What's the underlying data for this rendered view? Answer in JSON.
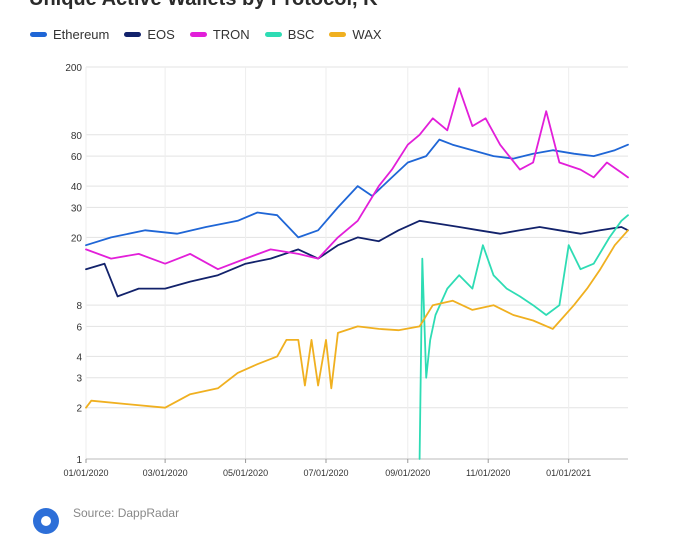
{
  "chart_data": {
    "type": "line",
    "title": "Unique Active Wallets by Protocol, K",
    "ylabel": "",
    "xlabel": "",
    "yscale": "log",
    "ylim": [
      1,
      200
    ],
    "y_ticks": [
      1,
      2,
      3,
      4,
      6,
      8,
      20,
      30,
      40,
      60,
      80,
      200
    ],
    "x_range": [
      "2020-01-01",
      "2021-02-15"
    ],
    "x_ticks": [
      "01/01/2020",
      "03/01/2020",
      "05/01/2020",
      "07/01/2020",
      "09/01/2020",
      "11/01/2020",
      "01/01/2021"
    ],
    "x_tick_dates": [
      "2020-01-01",
      "2020-03-01",
      "2020-05-01",
      "2020-07-01",
      "2020-09-01",
      "2020-11-01",
      "2021-01-01"
    ],
    "grid": true,
    "legend_position": "top-left",
    "series": [
      {
        "name": "Ethereum",
        "color": "#1f66d6",
        "points": [
          [
            "2020-01-01",
            18
          ],
          [
            "2020-01-20",
            20
          ],
          [
            "2020-02-15",
            22
          ],
          [
            "2020-03-10",
            21
          ],
          [
            "2020-04-01",
            23
          ],
          [
            "2020-04-25",
            25
          ],
          [
            "2020-05-10",
            28
          ],
          [
            "2020-05-25",
            27
          ],
          [
            "2020-06-10",
            20
          ],
          [
            "2020-06-25",
            22
          ],
          [
            "2020-07-10",
            30
          ],
          [
            "2020-07-25",
            40
          ],
          [
            "2020-08-05",
            35
          ],
          [
            "2020-08-20",
            45
          ],
          [
            "2020-09-01",
            55
          ],
          [
            "2020-09-15",
            60
          ],
          [
            "2020-09-25",
            75
          ],
          [
            "2020-10-05",
            70
          ],
          [
            "2020-10-20",
            65
          ],
          [
            "2020-11-05",
            60
          ],
          [
            "2020-11-20",
            58
          ],
          [
            "2020-12-05",
            62
          ],
          [
            "2020-12-20",
            65
          ],
          [
            "2021-01-05",
            62
          ],
          [
            "2021-01-20",
            60
          ],
          [
            "2021-02-05",
            65
          ],
          [
            "2021-02-15",
            70
          ]
        ]
      },
      {
        "name": "EOS",
        "color": "#12226b",
        "points": [
          [
            "2020-01-01",
            13
          ],
          [
            "2020-01-15",
            14
          ],
          [
            "2020-01-25",
            9
          ],
          [
            "2020-02-10",
            10
          ],
          [
            "2020-03-01",
            10
          ],
          [
            "2020-03-20",
            11
          ],
          [
            "2020-04-10",
            12
          ],
          [
            "2020-05-01",
            14
          ],
          [
            "2020-05-20",
            15
          ],
          [
            "2020-06-10",
            17
          ],
          [
            "2020-06-25",
            15
          ],
          [
            "2020-07-10",
            18
          ],
          [
            "2020-07-25",
            20
          ],
          [
            "2020-08-10",
            19
          ],
          [
            "2020-08-25",
            22
          ],
          [
            "2020-09-10",
            25
          ],
          [
            "2020-09-25",
            24
          ],
          [
            "2020-10-10",
            23
          ],
          [
            "2020-10-25",
            22
          ],
          [
            "2020-11-10",
            21
          ],
          [
            "2020-11-25",
            22
          ],
          [
            "2020-12-10",
            23
          ],
          [
            "2020-12-25",
            22
          ],
          [
            "2021-01-10",
            21
          ],
          [
            "2021-01-25",
            22
          ],
          [
            "2021-02-10",
            23
          ],
          [
            "2021-02-15",
            22
          ]
        ]
      },
      {
        "name": "TRON",
        "color": "#e21fd9",
        "points": [
          [
            "2020-01-01",
            17
          ],
          [
            "2020-01-20",
            15
          ],
          [
            "2020-02-10",
            16
          ],
          [
            "2020-03-01",
            14
          ],
          [
            "2020-03-20",
            16
          ],
          [
            "2020-04-10",
            13
          ],
          [
            "2020-05-01",
            15
          ],
          [
            "2020-05-20",
            17
          ],
          [
            "2020-06-10",
            16
          ],
          [
            "2020-06-25",
            15
          ],
          [
            "2020-07-10",
            20
          ],
          [
            "2020-07-25",
            25
          ],
          [
            "2020-08-10",
            40
          ],
          [
            "2020-08-20",
            50
          ],
          [
            "2020-09-01",
            70
          ],
          [
            "2020-09-10",
            80
          ],
          [
            "2020-09-20",
            100
          ],
          [
            "2020-10-01",
            85
          ],
          [
            "2020-10-10",
            150
          ],
          [
            "2020-10-20",
            90
          ],
          [
            "2020-10-30",
            100
          ],
          [
            "2020-11-10",
            70
          ],
          [
            "2020-11-25",
            50
          ],
          [
            "2020-12-05",
            55
          ],
          [
            "2020-12-15",
            110
          ],
          [
            "2020-12-25",
            55
          ],
          [
            "2021-01-10",
            50
          ],
          [
            "2021-01-20",
            45
          ],
          [
            "2021-01-30",
            55
          ],
          [
            "2021-02-10",
            48
          ],
          [
            "2021-02-15",
            45
          ]
        ]
      },
      {
        "name": "BSC",
        "color": "#2edcb4",
        "points": [
          [
            "2020-09-10",
            1
          ],
          [
            "2020-09-12",
            15
          ],
          [
            "2020-09-15",
            3
          ],
          [
            "2020-09-18",
            5
          ],
          [
            "2020-09-22",
            7
          ],
          [
            "2020-10-01",
            10
          ],
          [
            "2020-10-10",
            12
          ],
          [
            "2020-10-20",
            10
          ],
          [
            "2020-10-28",
            18
          ],
          [
            "2020-11-05",
            12
          ],
          [
            "2020-11-15",
            10
          ],
          [
            "2020-11-25",
            9
          ],
          [
            "2020-12-05",
            8
          ],
          [
            "2020-12-15",
            7
          ],
          [
            "2020-12-25",
            8
          ],
          [
            "2021-01-01",
            18
          ],
          [
            "2021-01-10",
            13
          ],
          [
            "2021-01-20",
            14
          ],
          [
            "2021-02-01",
            20
          ],
          [
            "2021-02-10",
            25
          ],
          [
            "2021-02-15",
            27
          ]
        ]
      },
      {
        "name": "WAX",
        "color": "#f0b020",
        "points": [
          [
            "2020-01-01",
            2
          ],
          [
            "2020-01-05",
            2.2
          ],
          [
            "2020-02-01",
            2.1
          ],
          [
            "2020-03-01",
            2.0
          ],
          [
            "2020-03-20",
            2.4
          ],
          [
            "2020-04-10",
            2.6
          ],
          [
            "2020-04-25",
            3.2
          ],
          [
            "2020-05-10",
            3.6
          ],
          [
            "2020-05-25",
            4.0
          ],
          [
            "2020-06-01",
            5.0
          ],
          [
            "2020-06-10",
            5.0
          ],
          [
            "2020-06-15",
            2.7
          ],
          [
            "2020-06-20",
            5.0
          ],
          [
            "2020-06-25",
            2.7
          ],
          [
            "2020-07-01",
            5.0
          ],
          [
            "2020-07-05",
            2.6
          ],
          [
            "2020-07-10",
            5.5
          ],
          [
            "2020-07-25",
            6.0
          ],
          [
            "2020-08-10",
            5.8
          ],
          [
            "2020-08-25",
            5.7
          ],
          [
            "2020-09-10",
            6.0
          ],
          [
            "2020-09-20",
            8.0
          ],
          [
            "2020-10-05",
            8.5
          ],
          [
            "2020-10-20",
            7.5
          ],
          [
            "2020-11-05",
            8.0
          ],
          [
            "2020-11-20",
            7.0
          ],
          [
            "2020-12-05",
            6.5
          ],
          [
            "2020-12-20",
            5.8
          ],
          [
            "2021-01-05",
            8.0
          ],
          [
            "2021-01-15",
            10.0
          ],
          [
            "2021-01-25",
            13.0
          ],
          [
            "2021-02-05",
            18.0
          ],
          [
            "2021-02-15",
            22.0
          ]
        ]
      }
    ]
  },
  "footer": {
    "source": "Source: DappRadar"
  }
}
